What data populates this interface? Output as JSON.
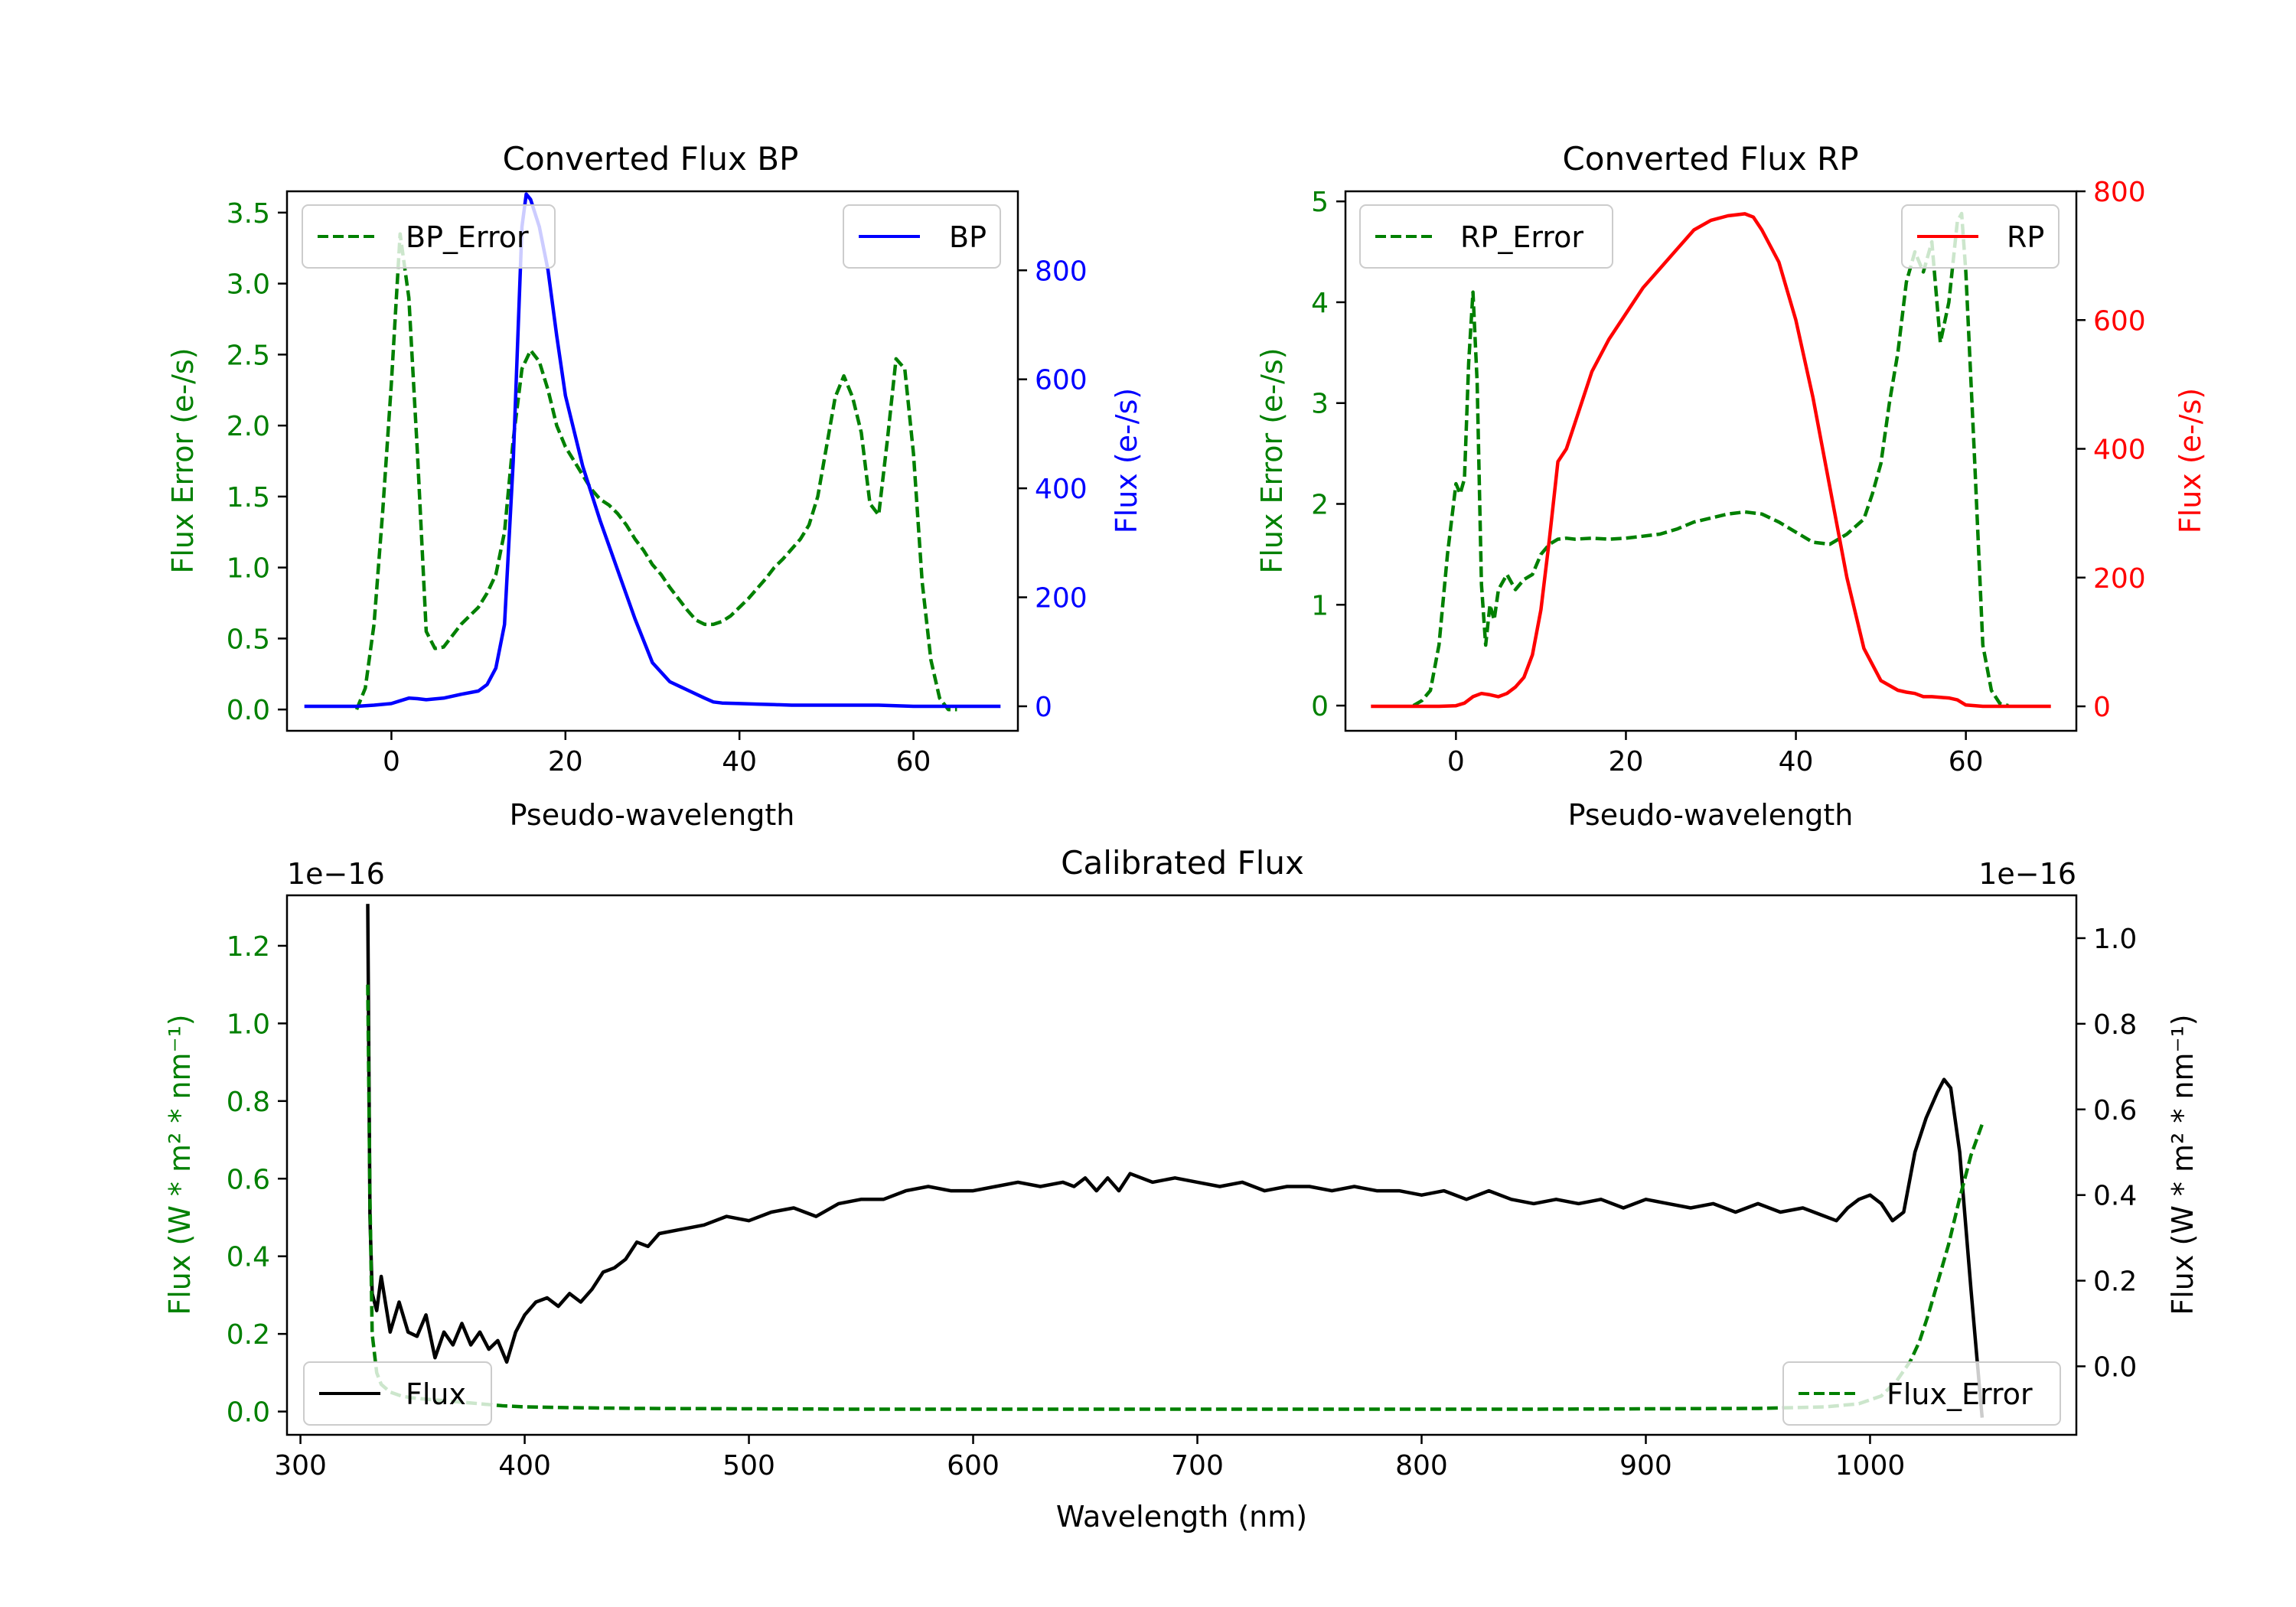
{
  "colors": {
    "bp": "#0000ff",
    "rp": "#ff0000",
    "error": "#008000",
    "flux": "#000000",
    "axis": "#000000"
  },
  "chart_data": [
    {
      "id": "bp",
      "type": "line",
      "title": "Converted Flux BP",
      "xlabel": "Pseudo-wavelength",
      "xlim": [
        -12,
        72
      ],
      "xticks": [
        0,
        20,
        40,
        60
      ],
      "y_left": {
        "label": "Flux Error (e-/s)",
        "lim": [
          -0.15,
          3.65
        ],
        "ticks": [
          0.0,
          0.5,
          1.0,
          1.5,
          2.0,
          2.5,
          3.0,
          3.5
        ],
        "tick_labels": [
          "0.0",
          "0.5",
          "1.0",
          "1.5",
          "2.0",
          "2.5",
          "3.0",
          "3.5"
        ]
      },
      "y_right": {
        "label": "Flux (e-/s)",
        "lim": [
          -45,
          945
        ],
        "ticks": [
          0,
          200,
          400,
          600,
          800
        ],
        "tick_labels": [
          "0",
          "200",
          "400",
          "600",
          "800"
        ]
      },
      "series": [
        {
          "name": "BP_Error",
          "axis": "left",
          "style": "dashed",
          "color": "#008000",
          "x": [
            -4,
            -3,
            -2,
            -1,
            0,
            1,
            2,
            3,
            4,
            5,
            6,
            7,
            8,
            9,
            10,
            11,
            12,
            13,
            14,
            15,
            16,
            17,
            18,
            19,
            20,
            21,
            22,
            23,
            24,
            25,
            26,
            27,
            28,
            29,
            30,
            31,
            32,
            33,
            34,
            35,
            36,
            37,
            38,
            39,
            40,
            41,
            42,
            43,
            44,
            45,
            46,
            47,
            48,
            49,
            50,
            51,
            52,
            53,
            54,
            55,
            56,
            57,
            58,
            59,
            60,
            61,
            62,
            63,
            64,
            65
          ],
          "y": [
            0.0,
            0.15,
            0.6,
            1.4,
            2.3,
            3.35,
            2.9,
            1.8,
            0.55,
            0.43,
            0.44,
            0.52,
            0.6,
            0.66,
            0.72,
            0.82,
            0.95,
            1.25,
            1.9,
            2.4,
            2.53,
            2.45,
            2.25,
            2.0,
            1.85,
            1.75,
            1.65,
            1.55,
            1.48,
            1.44,
            1.38,
            1.3,
            1.2,
            1.12,
            1.02,
            0.95,
            0.86,
            0.78,
            0.7,
            0.63,
            0.6,
            0.6,
            0.62,
            0.66,
            0.72,
            0.78,
            0.85,
            0.92,
            1.0,
            1.06,
            1.13,
            1.2,
            1.3,
            1.5,
            1.85,
            2.2,
            2.35,
            2.2,
            1.95,
            1.45,
            1.37,
            1.9,
            2.47,
            2.4,
            1.8,
            0.9,
            0.35,
            0.08,
            0.0,
            0.0
          ]
        },
        {
          "name": "BP",
          "axis": "right",
          "style": "solid",
          "color": "#0000ff",
          "x": [
            -10,
            -8,
            -6,
            -4,
            -2,
            0,
            1,
            2,
            3,
            4,
            6,
            8,
            10,
            11,
            12,
            13,
            14,
            15,
            15.5,
            16,
            17,
            18,
            19,
            20,
            22,
            24,
            26,
            28,
            30,
            32,
            34,
            36,
            37,
            38,
            40,
            42,
            44,
            46,
            48,
            50,
            52,
            54,
            56,
            58,
            60,
            62,
            64,
            66,
            68,
            70
          ],
          "y": [
            0,
            0,
            0,
            0,
            2,
            5,
            10,
            15,
            14,
            12,
            15,
            22,
            28,
            40,
            70,
            150,
            450,
            880,
            940,
            930,
            880,
            800,
            680,
            570,
            440,
            340,
            250,
            160,
            80,
            45,
            30,
            15,
            8,
            6,
            5,
            4,
            3,
            2,
            2,
            2,
            2,
            2,
            2,
            1,
            0,
            0,
            0,
            0,
            0,
            0
          ]
        }
      ]
    },
    {
      "id": "rp",
      "type": "line",
      "title": "Converted Flux RP",
      "xlabel": "Pseudo-wavelength",
      "xlim": [
        -13,
        73
      ],
      "xticks": [
        0,
        20,
        40,
        60
      ],
      "y_left": {
        "label": "Flux Error (e-/s)",
        "lim": [
          -0.25,
          5.1
        ],
        "ticks": [
          0,
          1,
          2,
          3,
          4,
          5
        ],
        "tick_labels": [
          "0",
          "1",
          "2",
          "3",
          "4",
          "5"
        ]
      },
      "y_right": {
        "label": "Flux (e-/s)",
        "lim": [
          -38,
          800
        ],
        "ticks": [
          0,
          200,
          400,
          600,
          800
        ],
        "tick_labels": [
          "0",
          "200",
          "400",
          "600",
          "800"
        ]
      },
      "series": [
        {
          "name": "RP_Error",
          "axis": "left",
          "style": "dashed",
          "color": "#008000",
          "x": [
            -5,
            -4,
            -3,
            -2,
            -1,
            0,
            0.5,
            1,
            1.5,
            2,
            2.5,
            3,
            3.5,
            4,
            4.5,
            5,
            6,
            7,
            8,
            9,
            10,
            11,
            12,
            13,
            14,
            16,
            18,
            20,
            22,
            24,
            26,
            28,
            30,
            32,
            34,
            36,
            38,
            40,
            42,
            44,
            46,
            48,
            49,
            50,
            51,
            52,
            53,
            54,
            55,
            56,
            57,
            58,
            59,
            59.5,
            60,
            61,
            62,
            63,
            64,
            65
          ],
          "y": [
            0.0,
            0.05,
            0.15,
            0.6,
            1.5,
            2.2,
            2.1,
            2.25,
            3.4,
            4.1,
            3.2,
            1.2,
            0.6,
            1.0,
            0.85,
            1.15,
            1.3,
            1.15,
            1.25,
            1.3,
            1.5,
            1.6,
            1.65,
            1.66,
            1.65,
            1.66,
            1.65,
            1.66,
            1.68,
            1.7,
            1.75,
            1.82,
            1.86,
            1.9,
            1.92,
            1.9,
            1.82,
            1.72,
            1.62,
            1.6,
            1.7,
            1.85,
            2.1,
            2.4,
            3.0,
            3.5,
            4.2,
            4.5,
            4.3,
            4.6,
            3.6,
            4.0,
            4.8,
            4.88,
            4.3,
            2.5,
            0.6,
            0.15,
            0.02,
            0.0
          ]
        },
        {
          "name": "RP",
          "axis": "right",
          "style": "solid",
          "color": "#ff0000",
          "x": [
            -10,
            -6,
            -4,
            -2,
            0,
            1,
            2,
            3,
            4,
            5,
            6,
            7,
            8,
            9,
            10,
            11,
            12,
            13,
            14,
            16,
            18,
            20,
            22,
            24,
            26,
            28,
            30,
            32,
            34,
            35,
            36,
            38,
            40,
            42,
            44,
            46,
            48,
            50,
            52,
            53,
            54,
            55,
            56,
            57,
            58,
            59,
            60,
            62,
            64,
            66,
            68,
            70
          ],
          "y": [
            0,
            0,
            0,
            0,
            1,
            5,
            15,
            20,
            18,
            15,
            20,
            30,
            45,
            80,
            150,
            260,
            380,
            400,
            440,
            520,
            570,
            610,
            650,
            680,
            710,
            740,
            755,
            762,
            765,
            760,
            740,
            690,
            600,
            480,
            340,
            200,
            90,
            40,
            25,
            22,
            20,
            15,
            15,
            14,
            13,
            10,
            2,
            0,
            0,
            0,
            0,
            0
          ]
        }
      ]
    },
    {
      "id": "calibrated",
      "type": "line",
      "title": "Calibrated Flux",
      "xlabel": "Wavelength (nm)",
      "xlim": [
        294,
        1092
      ],
      "xticks": [
        300,
        400,
        500,
        600,
        700,
        800,
        900,
        1000
      ],
      "y_left": {
        "label": "Flux (W * m² * nm⁻¹)",
        "offset": "1e−16",
        "lim": [
          -0.06,
          1.33
        ],
        "ticks": [
          0.0,
          0.2,
          0.4,
          0.6,
          0.8,
          1.0,
          1.2
        ],
        "tick_labels": [
          "0.0",
          "0.2",
          "0.4",
          "0.6",
          "0.8",
          "1.0",
          "1.2"
        ]
      },
      "y_right": {
        "label": "Flux (W * m² * nm⁻¹)",
        "offset": "1e−16",
        "lim": [
          -0.16,
          1.1
        ],
        "ticks": [
          0.0,
          0.2,
          0.4,
          0.6,
          0.8,
          1.0
        ],
        "tick_labels": [
          "0.0",
          "0.2",
          "0.4",
          "0.6",
          "0.8",
          "1.0"
        ]
      },
      "series": [
        {
          "name": "Flux",
          "axis": "right",
          "style": "solid",
          "color": "#000000",
          "x": [
            330,
            331,
            332,
            334,
            336,
            340,
            344,
            348,
            352,
            356,
            360,
            364,
            368,
            372,
            376,
            380,
            384,
            388,
            392,
            396,
            400,
            405,
            410,
            415,
            420,
            425,
            430,
            435,
            440,
            445,
            450,
            455,
            460,
            470,
            480,
            490,
            500,
            510,
            520,
            530,
            540,
            550,
            560,
            570,
            580,
            590,
            600,
            610,
            620,
            630,
            640,
            645,
            650,
            655,
            660,
            665,
            670,
            680,
            690,
            700,
            710,
            720,
            730,
            740,
            750,
            760,
            770,
            780,
            790,
            800,
            810,
            820,
            830,
            840,
            850,
            860,
            870,
            880,
            890,
            900,
            910,
            920,
            930,
            940,
            950,
            960,
            970,
            980,
            985,
            990,
            995,
            1000,
            1005,
            1010,
            1015,
            1020,
            1025,
            1030,
            1033,
            1036,
            1040,
            1045,
            1050
          ],
          "y": [
            1.08,
            0.35,
            0.17,
            0.13,
            0.21,
            0.08,
            0.15,
            0.08,
            0.07,
            0.12,
            0.02,
            0.08,
            0.05,
            0.1,
            0.05,
            0.08,
            0.04,
            0.06,
            0.01,
            0.08,
            0.12,
            0.15,
            0.16,
            0.14,
            0.17,
            0.15,
            0.18,
            0.22,
            0.23,
            0.25,
            0.29,
            0.28,
            0.31,
            0.32,
            0.33,
            0.35,
            0.34,
            0.36,
            0.37,
            0.35,
            0.38,
            0.39,
            0.39,
            0.41,
            0.42,
            0.41,
            0.41,
            0.42,
            0.43,
            0.42,
            0.43,
            0.42,
            0.44,
            0.41,
            0.44,
            0.41,
            0.45,
            0.43,
            0.44,
            0.43,
            0.42,
            0.43,
            0.41,
            0.42,
            0.42,
            0.41,
            0.42,
            0.41,
            0.41,
            0.4,
            0.41,
            0.39,
            0.41,
            0.39,
            0.38,
            0.39,
            0.38,
            0.39,
            0.37,
            0.39,
            0.38,
            0.37,
            0.38,
            0.36,
            0.38,
            0.36,
            0.37,
            0.35,
            0.34,
            0.37,
            0.39,
            0.4,
            0.38,
            0.34,
            0.36,
            0.5,
            0.58,
            0.64,
            0.67,
            0.65,
            0.5,
            0.18,
            -0.12
          ]
        },
        {
          "name": "Flux_Error",
          "axis": "left",
          "style": "dashed",
          "color": "#008000",
          "x": [
            330,
            331,
            332,
            334,
            336,
            340,
            345,
            350,
            360,
            370,
            380,
            390,
            400,
            420,
            450,
            500,
            550,
            600,
            650,
            700,
            750,
            800,
            850,
            900,
            950,
            980,
            995,
            1005,
            1012,
            1018,
            1022,
            1026,
            1030,
            1035,
            1040,
            1045,
            1050
          ],
          "y": [
            1.1,
            0.55,
            0.2,
            0.1,
            0.07,
            0.05,
            0.04,
            0.035,
            0.03,
            0.025,
            0.02,
            0.015,
            0.012,
            0.01,
            0.008,
            0.007,
            0.006,
            0.006,
            0.006,
            0.006,
            0.006,
            0.006,
            0.006,
            0.007,
            0.008,
            0.012,
            0.02,
            0.04,
            0.08,
            0.13,
            0.18,
            0.25,
            0.33,
            0.43,
            0.55,
            0.66,
            0.74
          ]
        }
      ]
    }
  ],
  "legends": {
    "bp_left": "BP_Error",
    "bp_right": "BP",
    "rp_left": "RP_Error",
    "rp_right": "RP",
    "cal_left": "Flux",
    "cal_right": "Flux_Error"
  }
}
